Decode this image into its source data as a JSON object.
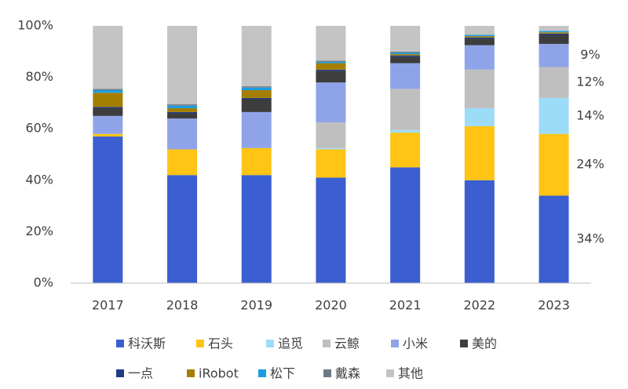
{
  "chart_data": {
    "type": "stacked_bar",
    "categories": [
      "2017",
      "2018",
      "2019",
      "2020",
      "2021",
      "2022",
      "2023"
    ],
    "ylim": [
      0,
      100
    ],
    "yticks": [
      {
        "value": 0,
        "label": "0%"
      },
      {
        "value": 20,
        "label": "20%"
      },
      {
        "value": 40,
        "label": "40%"
      },
      {
        "value": 60,
        "label": "60%"
      },
      {
        "value": 80,
        "label": "80%"
      },
      {
        "value": 100,
        "label": "100%"
      }
    ],
    "grid": false,
    "legend": "bottom",
    "series": [
      {
        "name": "科沃斯",
        "color": "#3b5fd0",
        "values": [
          57,
          42,
          42,
          41,
          45,
          40,
          34
        ],
        "value_labels": [
          null,
          null,
          null,
          null,
          null,
          null,
          "34%"
        ]
      },
      {
        "name": "石头",
        "color": "#ffc414",
        "values": [
          1,
          10,
          10.5,
          11,
          13.5,
          21,
          24
        ],
        "value_labels": [
          null,
          null,
          null,
          null,
          null,
          null,
          "24%"
        ]
      },
      {
        "name": "追觅",
        "color": "#9ddcf8",
        "values": [
          0,
          0,
          0,
          0.5,
          1,
          7,
          14
        ],
        "value_labels": [
          null,
          null,
          null,
          null,
          null,
          null,
          "14%"
        ]
      },
      {
        "name": "云鲸",
        "color": "#bfbfbf",
        "values": [
          0,
          0,
          0,
          10,
          16,
          15,
          12
        ],
        "value_labels": [
          null,
          null,
          null,
          null,
          null,
          null,
          "12%"
        ]
      },
      {
        "name": "小米",
        "color": "#8fa4e8",
        "values": [
          7,
          12,
          14,
          15.5,
          10,
          9.5,
          9
        ],
        "value_labels": [
          null,
          null,
          null,
          null,
          null,
          null,
          "9%"
        ]
      },
      {
        "name": "美的",
        "color": "#3d3d3d",
        "values": [
          3,
          2,
          5,
          4.5,
          2.5,
          2.5,
          3.5
        ]
      },
      {
        "name": "一点",
        "color": "#213a82",
        "values": [
          0.5,
          0.5,
          0.5,
          0.5,
          0.5,
          0.5,
          0.5
        ]
      },
      {
        "name": "iRobot",
        "color": "#a47e00",
        "values": [
          5.5,
          1.5,
          3,
          2.5,
          0.5,
          0.5,
          0.5
        ]
      },
      {
        "name": "松下",
        "color": "#1b9ee3",
        "values": [
          1,
          1,
          1,
          0.5,
          0.5,
          0.5,
          0.5
        ]
      },
      {
        "name": "戴森",
        "color": "#6c7a88",
        "values": [
          0.5,
          0.5,
          0.5,
          0.5,
          0.5,
          0,
          0
        ]
      },
      {
        "name": "其他",
        "color": "#c4c4c4",
        "values": [
          24.5,
          30.5,
          23.5,
          13.5,
          10,
          3.5,
          2
        ]
      }
    ]
  }
}
